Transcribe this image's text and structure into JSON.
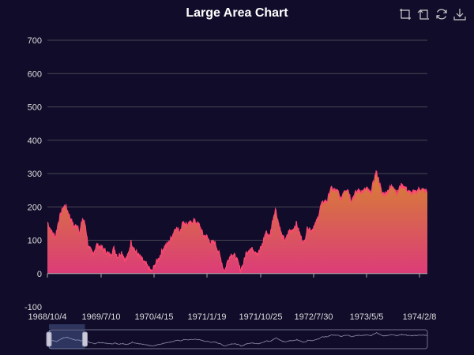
{
  "colors": {
    "background": "#100c2a",
    "area_top": "#d68232",
    "area_bottom": "#dc3c78",
    "line": "#ff4673",
    "grid": "#484753",
    "axis_text": "#dddddd",
    "title": "#ffffff"
  },
  "toolbox": {
    "icons": [
      "zoom-select-icon",
      "zoom-reset-icon",
      "restore-icon",
      "save-image-icon"
    ]
  },
  "chart_data": {
    "type": "area",
    "title": "Large Area Chart",
    "xlabel": "",
    "ylabel": "",
    "ylim": [
      -100,
      700
    ],
    "y_ticks": [
      "-100",
      "0",
      "100",
      "200",
      "300",
      "400",
      "500",
      "600",
      "700"
    ],
    "x_tick_labels": [
      "1968/10/4",
      "1969/7/10",
      "1970/4/15",
      "1971/1/19",
      "1971/10/25",
      "1972/7/30",
      "1973/5/5",
      "1974/2/8"
    ],
    "x_start": "1968/10/4",
    "x_end": "1974/3/27",
    "grid": true,
    "legend": "none",
    "series": [
      {
        "values": [
          [
            0,
            155
          ],
          [
            22,
            125
          ],
          [
            42,
            110
          ],
          [
            60,
            160
          ],
          [
            80,
            195
          ],
          [
            95,
            205
          ],
          [
            115,
            175
          ],
          [
            140,
            140
          ],
          [
            160,
            145
          ],
          [
            170,
            120
          ],
          [
            185,
            165
          ],
          [
            200,
            145
          ],
          [
            215,
            80
          ],
          [
            240,
            60
          ],
          [
            260,
            85
          ],
          [
            280,
            80
          ],
          [
            300,
            70
          ],
          [
            330,
            55
          ],
          [
            350,
            75
          ],
          [
            370,
            50
          ],
          [
            390,
            65
          ],
          [
            410,
            40
          ],
          [
            425,
            55
          ],
          [
            440,
            95
          ],
          [
            460,
            70
          ],
          [
            480,
            55
          ],
          [
            500,
            40
          ],
          [
            515,
            30
          ],
          [
            535,
            15
          ],
          [
            550,
            5
          ],
          [
            565,
            25
          ],
          [
            590,
            50
          ],
          [
            610,
            75
          ],
          [
            635,
            90
          ],
          [
            655,
            110
          ],
          [
            675,
            140
          ],
          [
            695,
            125
          ],
          [
            715,
            155
          ],
          [
            740,
            145
          ],
          [
            770,
            160
          ],
          [
            800,
            145
          ],
          [
            820,
            115
          ],
          [
            840,
            110
          ],
          [
            860,
            90
          ],
          [
            880,
            95
          ],
          [
            900,
            65
          ],
          [
            915,
            40
          ],
          [
            925,
            15
          ],
          [
            935,
            10
          ],
          [
            950,
            40
          ],
          [
            970,
            60
          ],
          [
            990,
            50
          ],
          [
            1005,
            30
          ],
          [
            1015,
            10
          ],
          [
            1030,
            25
          ],
          [
            1045,
            60
          ],
          [
            1065,
            75
          ],
          [
            1090,
            70
          ],
          [
            1110,
            60
          ],
          [
            1130,
            85
          ],
          [
            1150,
            125
          ],
          [
            1170,
            110
          ],
          [
            1190,
            170
          ],
          [
            1200,
            195
          ],
          [
            1215,
            155
          ],
          [
            1235,
            110
          ],
          [
            1255,
            100
          ],
          [
            1270,
            125
          ],
          [
            1290,
            130
          ],
          [
            1310,
            150
          ],
          [
            1330,
            115
          ],
          [
            1350,
            90
          ],
          [
            1370,
            140
          ],
          [
            1390,
            130
          ],
          [
            1410,
            145
          ],
          [
            1425,
            170
          ],
          [
            1440,
            205
          ],
          [
            1455,
            215
          ],
          [
            1475,
            220
          ],
          [
            1490,
            255
          ],
          [
            1510,
            250
          ],
          [
            1530,
            245
          ],
          [
            1545,
            220
          ],
          [
            1560,
            250
          ],
          [
            1580,
            255
          ],
          [
            1600,
            220
          ],
          [
            1620,
            240
          ],
          [
            1640,
            250
          ],
          [
            1660,
            245
          ],
          [
            1680,
            255
          ],
          [
            1700,
            240
          ],
          [
            1715,
            270
          ],
          [
            1730,
            305
          ],
          [
            1745,
            280
          ],
          [
            1760,
            240
          ],
          [
            1780,
            240
          ],
          [
            1800,
            255
          ],
          [
            1820,
            265
          ],
          [
            1840,
            240
          ],
          [
            1860,
            265
          ],
          [
            1880,
            260
          ],
          [
            1900,
            245
          ],
          [
            1920,
            240
          ],
          [
            1940,
            245
          ],
          [
            1960,
            255
          ],
          [
            1980,
            250
          ],
          [
            2000,
            245
          ]
        ]
      }
    ],
    "data_zoom": {
      "start_fraction": 0,
      "end_fraction": 0.095
    }
  }
}
